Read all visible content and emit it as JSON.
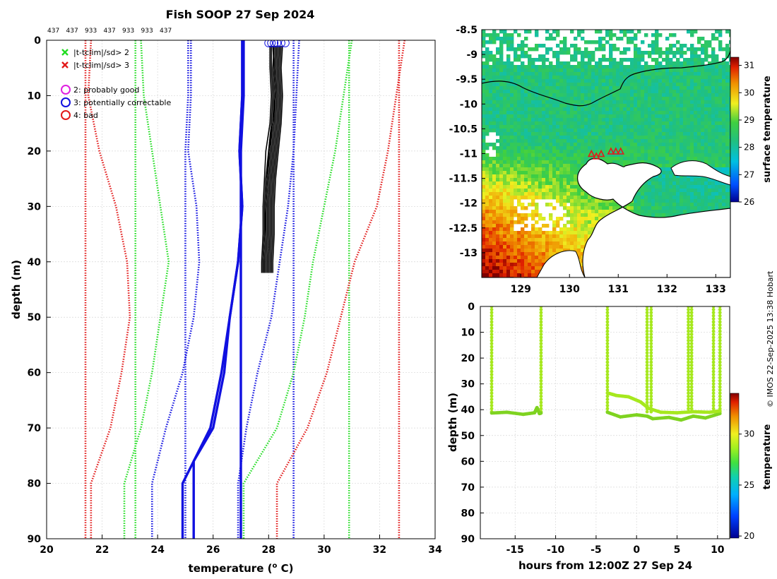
{
  "title": "Fish SOOP 27 Sep 2024",
  "watermark": "© IMOS 22-Sep-2025 13:38 Hobart",
  "chart_data": [
    {
      "id": "profile",
      "type": "line",
      "xlabel": "temperature",
      "xlabel_unit_base": "(",
      "xlabel_unit_sup": "o",
      "xlabel_unit_tail": " C)",
      "ylabel": "depth (m)",
      "xlim": [
        20,
        34
      ],
      "ylim": [
        0,
        90
      ],
      "y_reversed": true,
      "xticks": [
        20,
        22,
        24,
        26,
        28,
        30,
        32,
        34
      ],
      "yticks": [
        0,
        10,
        20,
        30,
        40,
        50,
        60,
        70,
        80,
        90
      ],
      "grid": true,
      "top_labels": [
        "437",
        "437",
        "933",
        "437",
        "933",
        "933",
        "437"
      ],
      "legend_position": "top-left",
      "legend": [
        {
          "marker": "x",
          "color": "#22dd22",
          "label": "|t-tclim|/sd> 2"
        },
        {
          "marker": "x",
          "color": "#e21a1a",
          "label": "|t-tclim|/sd> 3"
        },
        {
          "marker": "o",
          "color": "#e020e0",
          "label": "2: probably good"
        },
        {
          "marker": "o",
          "color": "#1010e0",
          "label": "3: potentially correctable"
        },
        {
          "marker": "o",
          "color": "#e21a1a",
          "label": "4: bad"
        }
      ],
      "series": [
        {
          "name": "clim mean a",
          "color": "#1010e0",
          "style": "solid",
          "x": [
            27.1,
            27.1,
            27.0,
            27.0,
            27.0,
            27.0,
            27.0,
            27.0,
            27.0,
            27.0
          ],
          "y": [
            0,
            10,
            20,
            30,
            40,
            50,
            60,
            70,
            80,
            90
          ]
        },
        {
          "name": "clim mean b",
          "color": "#1010e0",
          "style": "solid",
          "x": [
            27.05,
            27.05,
            26.95,
            27.05,
            26.9,
            26.6,
            26.4,
            26.0,
            25.3,
            25.3
          ],
          "y": [
            0,
            10,
            20,
            30,
            40,
            50,
            60,
            70,
            76,
            90
          ]
        },
        {
          "name": "clim mean c",
          "color": "#1010e0",
          "style": "solid",
          "x": [
            27.05,
            27.05,
            26.95,
            27.05,
            26.9,
            26.6,
            26.3,
            25.9,
            24.9,
            24.9
          ],
          "y": [
            0,
            10,
            20,
            30,
            40,
            50,
            60,
            70,
            80,
            90
          ]
        },
        {
          "name": "sd2 lower",
          "color": "#1010e0",
          "style": "dotted",
          "x": [
            25.2,
            25.2,
            25.1,
            25.4,
            25.5,
            25.3,
            24.9,
            24.3,
            23.8,
            23.8
          ],
          "y": [
            0,
            10,
            20,
            30,
            40,
            50,
            60,
            70,
            80,
            90
          ]
        },
        {
          "name": "sd2 lower b",
          "color": "#1010e0",
          "style": "dotted",
          "x": [
            25.1,
            25.1,
            25.0,
            25.0,
            25.0,
            25.0,
            25.0,
            25.0,
            25.0,
            25.0
          ],
          "y": [
            0,
            10,
            20,
            30,
            40,
            50,
            60,
            70,
            80,
            90
          ]
        },
        {
          "name": "sd2 upper",
          "color": "#1010e0",
          "style": "dotted",
          "x": [
            29.1,
            29.0,
            28.9,
            28.7,
            28.4,
            28.1,
            27.6,
            27.2,
            26.9,
            26.9
          ],
          "y": [
            0,
            10,
            20,
            30,
            40,
            50,
            60,
            70,
            80,
            90
          ]
        },
        {
          "name": "sd2 upper b",
          "color": "#1010e0",
          "style": "dotted",
          "x": [
            28.9,
            28.9,
            28.9,
            28.9,
            28.9,
            28.9,
            28.9,
            28.9,
            28.9,
            28.9
          ],
          "y": [
            0,
            10,
            20,
            30,
            40,
            50,
            60,
            70,
            80,
            90
          ]
        },
        {
          "name": "sd3 lower",
          "color": "#22dd22",
          "style": "dotted",
          "x": [
            23.4,
            23.5,
            23.8,
            24.1,
            24.4,
            24.1,
            23.8,
            23.4,
            22.8,
            22.8
          ],
          "y": [
            0,
            10,
            20,
            30,
            40,
            50,
            60,
            70,
            80,
            90
          ]
        },
        {
          "name": "sd3 lower b",
          "color": "#22dd22",
          "style": "dotted",
          "x": [
            23.2,
            23.2,
            23.2,
            23.2,
            23.2,
            23.2,
            23.2,
            23.2,
            23.2,
            23.2
          ],
          "y": [
            0,
            10,
            20,
            30,
            40,
            50,
            60,
            70,
            80,
            90
          ]
        },
        {
          "name": "sd3 upper",
          "color": "#22dd22",
          "style": "dotted",
          "x": [
            31.0,
            30.7,
            30.4,
            30.0,
            29.6,
            29.3,
            28.9,
            28.3,
            27.1,
            27.1
          ],
          "y": [
            0,
            10,
            20,
            30,
            40,
            50,
            60,
            70,
            80,
            90
          ]
        },
        {
          "name": "sd3 upper b",
          "color": "#22dd22",
          "style": "dotted",
          "x": [
            30.9,
            30.9,
            30.9,
            30.9,
            30.9,
            30.9,
            30.9,
            30.9,
            30.9,
            30.9
          ],
          "y": [
            0,
            10,
            20,
            30,
            40,
            50,
            60,
            70,
            80,
            90
          ]
        },
        {
          "name": "sd4 lower",
          "color": "#e21a1a",
          "style": "dotted",
          "x": [
            21.6,
            21.5,
            21.9,
            22.5,
            22.9,
            23.0,
            22.7,
            22.3,
            21.6,
            21.6
          ],
          "y": [
            0,
            10,
            20,
            30,
            40,
            50,
            60,
            70,
            80,
            90
          ]
        },
        {
          "name": "sd4 lower b",
          "color": "#e21a1a",
          "style": "dotted",
          "x": [
            21.4,
            21.4,
            21.4,
            21.4,
            21.4,
            21.4,
            21.4,
            21.4,
            21.4,
            21.4
          ],
          "y": [
            0,
            10,
            20,
            30,
            40,
            50,
            60,
            70,
            80,
            90
          ]
        },
        {
          "name": "sd4 upper",
          "color": "#e21a1a",
          "style": "dotted",
          "x": [
            32.9,
            32.6,
            32.3,
            31.9,
            31.1,
            30.6,
            30.1,
            29.4,
            28.3,
            28.3
          ],
          "y": [
            0,
            10,
            20,
            30,
            40,
            50,
            60,
            70,
            80,
            90
          ]
        },
        {
          "name": "sd4 upper b",
          "color": "#e21a1a",
          "style": "dotted",
          "x": [
            32.7,
            32.7,
            32.7,
            32.7,
            32.7,
            32.7,
            32.7,
            32.7,
            32.7,
            32.7
          ],
          "y": [
            0,
            10,
            20,
            30,
            40,
            50,
            60,
            70,
            80,
            90
          ]
        }
      ],
      "profiles": {
        "color": "#000000",
        "y": [
          1,
          5,
          10,
          15,
          20,
          25,
          30,
          35,
          40,
          42
        ],
        "x": [
          [
            28.05,
            28.05,
            28.1,
            28.05,
            27.9,
            27.85,
            27.8,
            27.8,
            27.75,
            27.75
          ],
          [
            28.1,
            28.1,
            28.15,
            28.1,
            28.0,
            27.9,
            27.85,
            27.85,
            27.8,
            27.8
          ],
          [
            28.2,
            28.15,
            28.2,
            28.15,
            28.05,
            27.95,
            27.9,
            27.9,
            27.85,
            27.85
          ],
          [
            28.25,
            28.2,
            28.25,
            28.2,
            28.1,
            28.0,
            27.95,
            27.95,
            27.9,
            27.9
          ],
          [
            28.3,
            28.25,
            28.3,
            28.25,
            28.15,
            28.05,
            28.0,
            28.0,
            27.95,
            27.95
          ],
          [
            28.35,
            28.3,
            28.35,
            28.3,
            28.2,
            28.1,
            28.05,
            28.05,
            28.0,
            28.0
          ],
          [
            28.4,
            28.35,
            28.4,
            28.35,
            28.25,
            28.15,
            28.1,
            28.1,
            28.05,
            28.05
          ],
          [
            28.45,
            28.4,
            28.45,
            28.4,
            28.3,
            28.2,
            28.15,
            28.15,
            28.1,
            28.1
          ],
          [
            28.5,
            28.45,
            28.5,
            28.45,
            28.35,
            28.25,
            28.2,
            28.2,
            28.15,
            28.15
          ],
          [
            28.15,
            28.2,
            28.25,
            28.15,
            28.0,
            27.95,
            27.9,
            27.85,
            27.8,
            27.8
          ]
        ],
        "flag_circles": {
          "color": "#1010e0",
          "x": [
            28.0,
            28.1,
            28.2,
            28.3,
            28.45,
            28.6
          ],
          "y": [
            0.5,
            0.5,
            0.5,
            0.5,
            0.5,
            0.5
          ]
        }
      }
    },
    {
      "id": "sst_map",
      "type": "heatmap",
      "xlim": [
        128.2,
        133.3
      ],
      "ylim": [
        -13.5,
        -8.5
      ],
      "xticks": [
        129,
        130,
        131,
        132,
        133
      ],
      "yticks": [
        -8.5,
        -9,
        -9.5,
        -10,
        -10.5,
        -11,
        -11.5,
        -12,
        -12.5,
        -13
      ],
      "colorbar": {
        "label": "surface temperature",
        "min": 26,
        "max": 31.3,
        "ticks": [
          26,
          27,
          28,
          29,
          30,
          31
        ]
      },
      "drop_markers": {
        "marker": "triangle",
        "color": "#e21a1a",
        "lon": [
          130.45,
          130.55,
          130.65,
          130.85,
          130.95,
          131.05
        ],
        "lat": [
          -11.0,
          -11.05,
          -11.0,
          -10.95,
          -10.95,
          -10.95
        ]
      }
    },
    {
      "id": "time_depth",
      "type": "scatter",
      "xlabel": "hours from 12:00Z 27 Sep 24",
      "ylabel": "depth (m)",
      "xlim": [
        -19.3,
        11.5
      ],
      "ylim": [
        0,
        90
      ],
      "y_reversed": true,
      "xticks": [
        -15,
        -10,
        -5,
        0,
        5,
        10
      ],
      "yticks": [
        0,
        10,
        20,
        30,
        40,
        50,
        60,
        70,
        80,
        90
      ],
      "colorbar": {
        "label": "temperature",
        "min": 19.8,
        "max": 34,
        "ticks": [
          20,
          25,
          30
        ]
      },
      "color_value": 27.8,
      "drops_x": [
        -17.9,
        -11.8,
        -3.6,
        1.3,
        1.8,
        6.4,
        6.8,
        9.5,
        10.3
      ],
      "bottom_trace": {
        "x": [
          -17.9,
          -16,
          -14,
          -12.6,
          -12.3,
          -12.0,
          -11.8
        ],
        "y": [
          41.3,
          41.0,
          41.8,
          41.2,
          39.2,
          41.5,
          41.3
        ]
      },
      "bottom_trace2": {
        "x": [
          -3.6,
          -2,
          0,
          1.3,
          2,
          4,
          5.5,
          7,
          8.5,
          10.3
        ],
        "y": [
          41.0,
          42.8,
          42.0,
          42.5,
          43.5,
          43.0,
          44.0,
          42.5,
          43.2,
          41.5
        ]
      },
      "mid_trace": {
        "x": [
          -3.6,
          -2.5,
          -1,
          0.5,
          1.5,
          3,
          5,
          7,
          9,
          10.3
        ],
        "y": [
          33.5,
          34.5,
          35.0,
          37.0,
          39.5,
          41.0,
          41.2,
          40.8,
          41.0,
          40.5
        ]
      }
    }
  ]
}
